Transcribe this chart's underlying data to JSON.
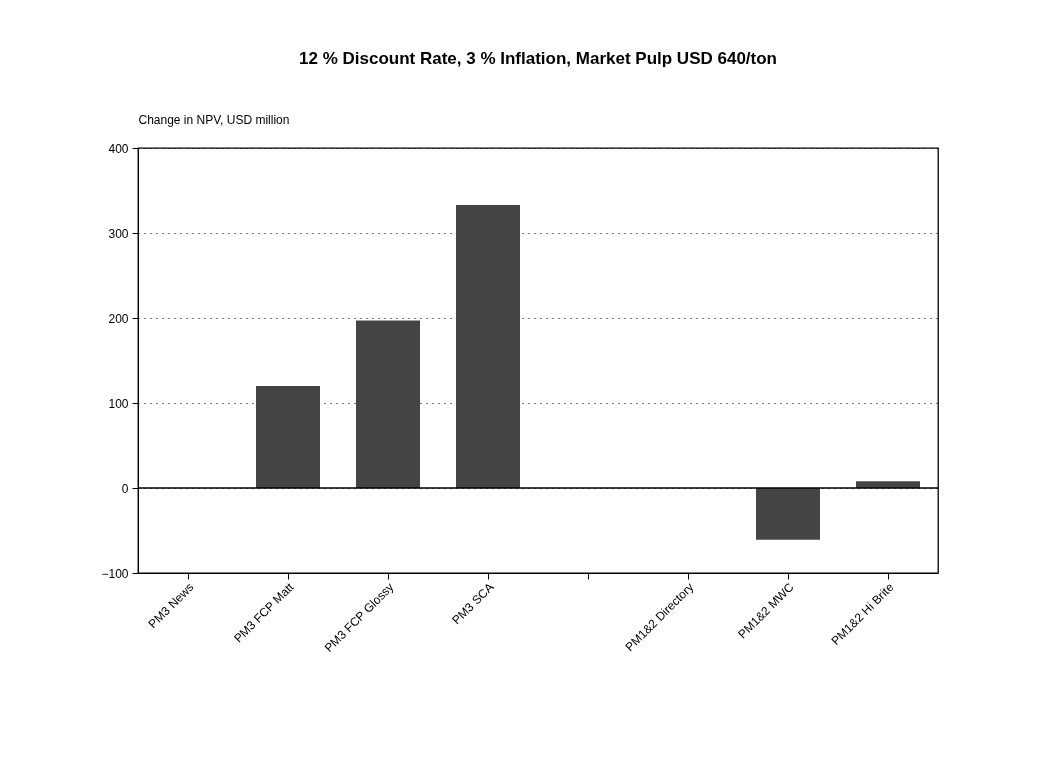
{
  "chart_data": {
    "type": "bar",
    "title": "12 % Discount Rate, 3 % Inflation, Market Pulp USD 640/ton",
    "ylabel": "Change in NPV, USD million",
    "categories": [
      "PM3 News",
      "PM3 FCP Matt",
      "PM3 FCP Glossy",
      "PM3 SCA",
      null,
      "PM1&2 Directory",
      "PM1&2 MWC",
      "PM1&2 Hi Brite"
    ],
    "values": [
      0,
      120,
      197,
      333,
      null,
      0,
      -61,
      8
    ],
    "color": "#444444",
    "ylim": [
      -100,
      400
    ],
    "yticks": [
      -100,
      0,
      100,
      200,
      300,
      400
    ],
    "grid": "y",
    "ref_lines": [
      {
        "axis": "y",
        "value": 0,
        "color": "#000000",
        "line_style": "solid"
      }
    ]
  }
}
